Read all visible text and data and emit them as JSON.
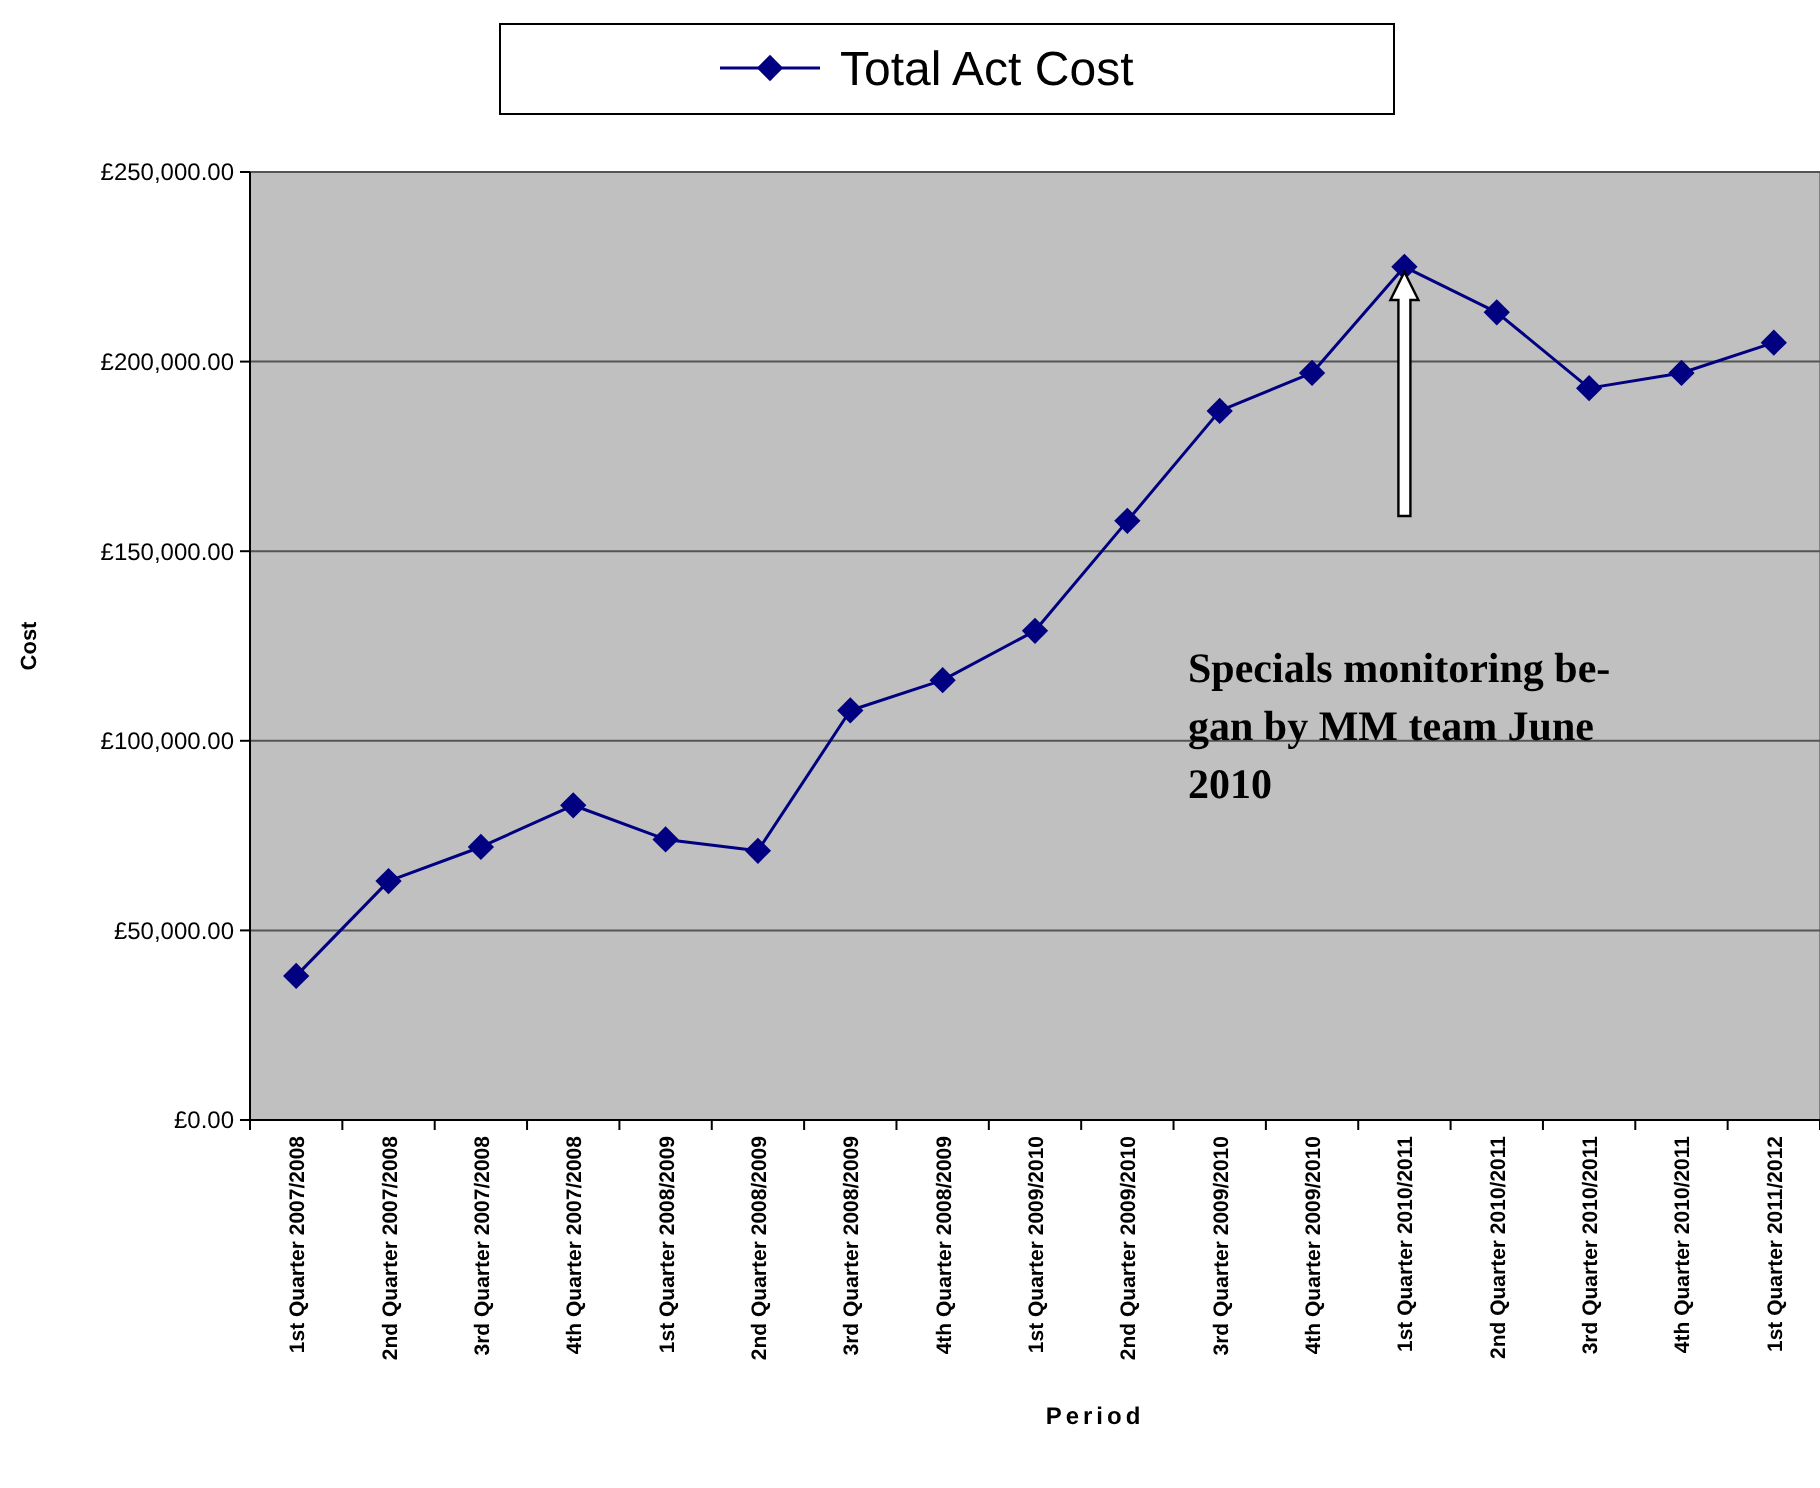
{
  "chart_data": {
    "type": "line",
    "xlabel": "Period",
    "ylabel": "Cost",
    "categories": [
      "1st Quarter 2007/2008",
      "2nd Quarter 2007/2008",
      "3rd Quarter 2007/2008",
      "4th Quarter 2007/2008",
      "1st Quarter 2008/2009",
      "2nd Quarter 2008/2009",
      "3rd Quarter 2008/2009",
      "4th Quarter 2008/2009",
      "1st Quarter 2009/2010",
      "2nd Quarter 2009/2010",
      "3rd Quarter 2009/2010",
      "4th Quarter 2009/2010",
      "1st Quarter 2010/2011",
      "2nd Quarter 2010/2011",
      "3rd Quarter 2010/2011",
      "4th Quarter 2010/2011",
      "1st Quarter 2011/2012"
    ],
    "series": [
      {
        "name": "Total Act Cost",
        "color": "#000080",
        "values": [
          38000,
          63000,
          72000,
          83000,
          74000,
          71000,
          108000,
          116000,
          129000,
          158000,
          187000,
          197000,
          225000,
          213000,
          193000,
          197000,
          205000
        ]
      }
    ],
    "ylim": [
      0,
      250000
    ],
    "yticks": [
      {
        "value": 0,
        "label": "£0.00"
      },
      {
        "value": 50000,
        "label": "£50,000.00"
      },
      {
        "value": 100000,
        "label": "£100,000.00"
      },
      {
        "value": 150000,
        "label": "£150,000.00"
      },
      {
        "value": 200000,
        "label": "£200,000.00"
      },
      {
        "value": 250000,
        "label": "£250,000.00"
      }
    ],
    "grid": "y",
    "legend": "top",
    "marker": "diamond",
    "line_style": "solid",
    "annotations": [
      "Specials monitoring be-\ngan by MM team June\n2010"
    ]
  }
}
